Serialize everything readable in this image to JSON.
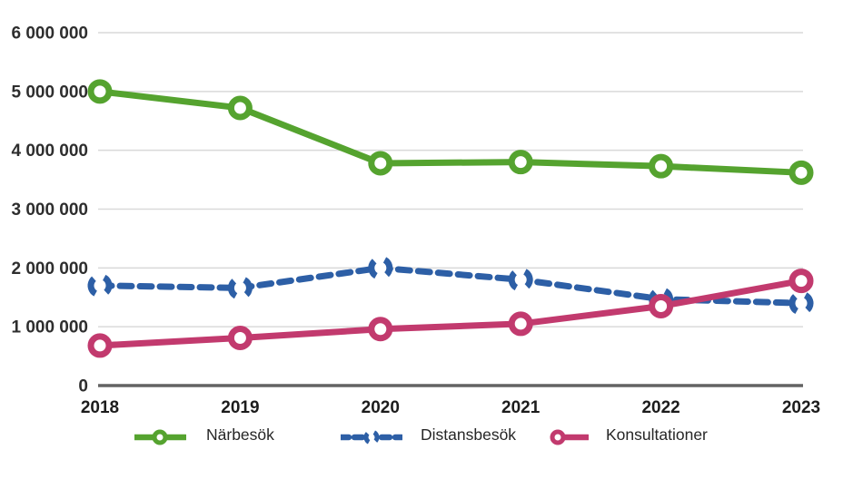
{
  "chart_data": {
    "type": "line",
    "title": "",
    "xlabel": "",
    "ylabel": "",
    "categories": [
      "2018",
      "2019",
      "2020",
      "2021",
      "2022",
      "2023"
    ],
    "series": [
      {
        "name": "Närbesök",
        "color": "#55a32f",
        "style": "solid",
        "values": [
          5000000,
          4720000,
          3780000,
          3800000,
          3730000,
          3620000
        ]
      },
      {
        "name": "Distansbesök",
        "color": "#2d5fa6",
        "style": "dashed",
        "values": [
          1700000,
          1660000,
          2000000,
          1800000,
          1470000,
          1400000
        ]
      },
      {
        "name": "Konsultationer",
        "color": "#c23a6e",
        "style": "solid",
        "values": [
          680000,
          810000,
          960000,
          1050000,
          1350000,
          1780000
        ]
      }
    ],
    "ylim": [
      0,
      6000000
    ],
    "yticks": [
      {
        "value": 0,
        "label": "0"
      },
      {
        "value": 1000000,
        "label": "1 000 000"
      },
      {
        "value": 2000000,
        "label": "2 000 000"
      },
      {
        "value": 3000000,
        "label": "3 000 000"
      },
      {
        "value": 4000000,
        "label": "4 000 000"
      },
      {
        "value": 5000000,
        "label": "5 000 000"
      },
      {
        "value": 6000000,
        "label": "6 000 000"
      }
    ],
    "grid": true,
    "legend_position": "bottom"
  },
  "colors": {
    "background": "#ffffff",
    "gridline": "#d9d9d9",
    "axis_line": "#636363",
    "tick_text": "#2e2e2e",
    "category_text": "#1c1c1c",
    "legend_text": "#262626"
  }
}
